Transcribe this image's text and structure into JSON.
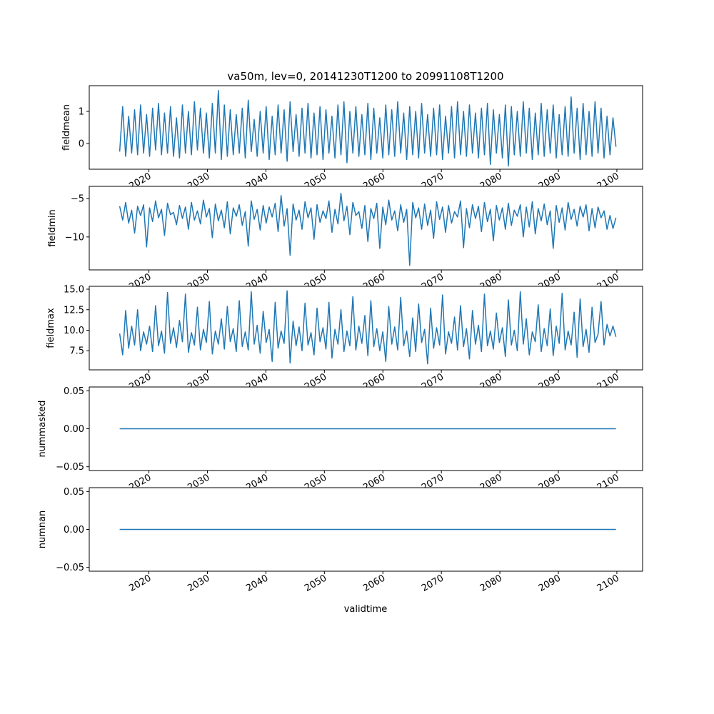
{
  "chart_data": {
    "type": "line",
    "title": "va50m, lev=0, 20141230T1200 to 20991108T1200",
    "xlabel": "validtime",
    "x_ticks": [
      "2020",
      "2030",
      "2040",
      "2050",
      "2060",
      "2070",
      "2080",
      "2090",
      "2100"
    ],
    "x_tick_values": [
      2020,
      2030,
      2040,
      2050,
      2060,
      2070,
      2080,
      2090,
      2100
    ],
    "xlim": [
      2009.8,
      2104.4
    ],
    "x_start": 2015.0,
    "x_end": 2099.85,
    "line_color": "#1f77b4",
    "panels": [
      {
        "ylabel": "fieldmean",
        "ylim": [
          -0.8,
          1.8
        ],
        "y_ticks": [
          "0",
          "1"
        ],
        "y_tick_values": [
          0,
          1
        ],
        "values": [
          -0.25,
          1.15,
          -0.4,
          0.85,
          -0.3,
          1.05,
          -0.35,
          1.2,
          -0.3,
          0.9,
          -0.4,
          1.1,
          -0.2,
          1.25,
          -0.35,
          0.95,
          -0.3,
          1.15,
          -0.4,
          0.8,
          -0.45,
          1.2,
          -0.3,
          1.0,
          -0.35,
          1.3,
          -0.2,
          1.1,
          -0.3,
          0.95,
          -0.45,
          1.25,
          -0.3,
          1.65,
          -0.5,
          1.2,
          -0.4,
          1.05,
          -0.35,
          0.9,
          -0.3,
          1.1,
          -0.45,
          1.35,
          -0.25,
          0.75,
          -0.4,
          1.0,
          -0.3,
          1.15,
          -0.5,
          0.85,
          -0.35,
          1.2,
          -0.3,
          1.05,
          -0.55,
          1.3,
          -0.25,
          0.9,
          -0.4,
          1.1,
          -0.3,
          1.25,
          -0.45,
          0.95,
          -0.35,
          1.15,
          -0.5,
          1.05,
          -0.3,
          0.85,
          -0.45,
          1.2,
          -0.35,
          1.3,
          -0.6,
          1.0,
          -0.3,
          1.15,
          -0.4,
          0.9,
          -0.35,
          1.25,
          -0.5,
          1.1,
          -0.3,
          0.8,
          -0.45,
          1.2,
          -0.35,
          1.05,
          -0.4,
          1.3,
          -0.3,
          0.95,
          -0.5,
          1.15,
          -0.35,
          1.0,
          -0.45,
          1.25,
          -0.3,
          0.9,
          -0.4,
          1.1,
          -0.35,
          1.2,
          -0.5,
          0.85,
          -0.3,
          1.15,
          -0.45,
          1.3,
          -0.35,
          1.0,
          -0.4,
          1.2,
          -0.3,
          0.95,
          -0.45,
          1.1,
          -0.35,
          1.25,
          -0.65,
          1.05,
          -0.3,
          0.9,
          -0.45,
          1.2,
          -0.7,
          1.15,
          -0.35,
          1.0,
          -0.4,
          1.3,
          -0.3,
          1.1,
          -0.5,
          0.95,
          -0.35,
          1.25,
          -0.4,
          1.05,
          -0.3,
          1.2,
          -0.45,
          0.9,
          -0.35,
          1.15,
          -0.4,
          1.45,
          -0.3,
          1.1,
          -0.5,
          1.25,
          -0.35,
          1.0,
          -0.4,
          1.3,
          -0.3,
          1.1,
          -0.45,
          0.85,
          -0.35,
          0.8,
          -0.1
        ]
      },
      {
        "ylabel": "fieldmin",
        "ylim": [
          -14.3,
          -3.4
        ],
        "y_ticks": [
          "−10",
          "−5"
        ],
        "y_tick_values": [
          -10,
          -5
        ],
        "values": [
          -6,
          -7.8,
          -5.5,
          -8.2,
          -6.5,
          -9.5,
          -6,
          -7.2,
          -5.8,
          -11.3,
          -6.2,
          -8,
          -5.3,
          -7.5,
          -6.4,
          -9.8,
          -5.6,
          -7.1,
          -6.8,
          -8.4,
          -5.9,
          -7.6,
          -6.1,
          -9,
          -5.5,
          -7.8,
          -6.6,
          -8.3,
          -5.2,
          -7.4,
          -6.3,
          -10.1,
          -5.7,
          -7.9,
          -6.5,
          -8.8,
          -5.4,
          -9.6,
          -6.2,
          -7.3,
          -5.8,
          -8.5,
          -6.7,
          -11.2,
          -5.3,
          -7.7,
          -6.4,
          -9.1,
          -5.9,
          -8.2,
          -6.1,
          -7.4,
          -5.6,
          -9.3,
          -4.6,
          -8.6,
          -6.3,
          -12.4,
          -5.7,
          -7.8,
          -6.5,
          -9,
          -5.4,
          -7.5,
          -6.2,
          -10.3,
          -5.8,
          -8.1,
          -6.6,
          -7.6,
          -5.3,
          -9.4,
          -6.4,
          -8.3,
          -4.3,
          -7.9,
          -6,
          -9.7,
          -5.5,
          -7.2,
          -6.7,
          -8.9,
          -5.9,
          -10.6,
          -6.3,
          -7.6,
          -5.6,
          -11.5,
          -6.1,
          -8.4,
          -5.2,
          -7.8,
          -6.6,
          -9.2,
          -5.8,
          -8.1,
          -6.4,
          -13.7,
          -5.5,
          -7.5,
          -6.2,
          -9,
          -5.7,
          -8.5,
          -6.5,
          -10.2,
          -5.4,
          -7.7,
          -6.1,
          -9.4,
          -5.9,
          -8.2,
          -6.7,
          -7.4,
          -5.3,
          -11.4,
          -6.3,
          -8.8,
          -5.8,
          -7.6,
          -6,
          -9.3,
          -5.5,
          -8,
          -6.4,
          -10.5,
          -5.9,
          -7.8,
          -6.2,
          -9,
          -5.6,
          -8.5,
          -6.5,
          -7.3,
          -5.8,
          -10,
          -6.1,
          -8.7,
          -5.4,
          -9.6,
          -6.3,
          -7.9,
          -5.7,
          -8.4,
          -6.6,
          -11.5,
          -5.9,
          -8.1,
          -6.2,
          -9.1,
          -5.5,
          -7.7,
          -6.4,
          -8.6,
          -6,
          -7.4,
          -5.8,
          -9.2,
          -6.3,
          -8.8,
          -6.1,
          -7.5,
          -6.6,
          -9.0,
          -7.2,
          -8.9,
          -7.5
        ]
      },
      {
        "ylabel": "fieldmax",
        "ylim": [
          5.17,
          15.35
        ],
        "y_ticks": [
          "7.5",
          "10.0",
          "12.5",
          "15.0"
        ],
        "y_tick_values": [
          7.5,
          10,
          12.5,
          15
        ],
        "values": [
          9.6,
          7,
          12.4,
          7.8,
          10.5,
          8.2,
          12.5,
          7.5,
          9.8,
          8.3,
          10.5,
          7.4,
          13,
          8.1,
          9.9,
          7.2,
          14.6,
          8.4,
          10.3,
          7.9,
          11.2,
          8.6,
          14.4,
          7.3,
          9.7,
          8.2,
          12.8,
          7.6,
          10.1,
          8.5,
          13.5,
          7.1,
          9.9,
          8.3,
          11.4,
          7.7,
          12.9,
          8.6,
          10.2,
          7.4,
          13.6,
          8,
          9.8,
          7.6,
          14.7,
          8.3,
          10.6,
          7.2,
          12.3,
          8.5,
          10.1,
          6.2,
          13.4,
          7.8,
          9.9,
          8.4,
          14.8,
          6,
          11.1,
          8.1,
          10.4,
          7.5,
          13.3,
          8.2,
          9.7,
          7,
          12.7,
          8.6,
          10.3,
          7.7,
          13.4,
          6.6,
          10.1,
          8.3,
          12.5,
          7.4,
          9.9,
          8.1,
          14.1,
          7.6,
          10.5,
          8.4,
          11.8,
          6.9,
          13.6,
          8,
          10.2,
          7.5,
          9.8,
          6.2,
          12.9,
          8.3,
          10.4,
          7.6,
          14,
          8.1,
          9.9,
          6.8,
          11.5,
          7.4,
          13.2,
          8.5,
          10.1,
          5.9,
          12.7,
          7.8,
          10.3,
          8.2,
          14.3,
          7.1,
          9.8,
          8.4,
          11.6,
          7.6,
          13,
          8,
          10.2,
          6.5,
          12.4,
          8.3,
          10.6,
          7.4,
          14.4,
          8.1,
          9.9,
          7.7,
          12.1,
          8.5,
          10.3,
          6.8,
          13.7,
          8.2,
          10,
          7.5,
          14.7,
          8.3,
          11.4,
          7,
          9.8,
          8.6,
          13.1,
          7.4,
          10.2,
          8.1,
          12.6,
          6.9,
          10.5,
          8.4,
          14.5,
          7.6,
          9.9,
          8.2,
          12.2,
          6.7,
          13.8,
          8,
          10.1,
          7.3,
          12.8,
          8.5,
          9.5,
          13.5,
          8.2,
          10.7,
          9.3,
          10.5,
          9.2
        ]
      },
      {
        "ylabel": "nummasked",
        "ylim": [
          -0.055,
          0.055
        ],
        "y_ticks": [
          "−0.05",
          "0.00",
          "0.05"
        ],
        "y_tick_values": [
          -0.05,
          0,
          0.05
        ],
        "values": [
          0,
          0
        ]
      },
      {
        "ylabel": "numnan",
        "ylim": [
          -0.055,
          0.055
        ],
        "y_ticks": [
          "−0.05",
          "0.00",
          "0.05"
        ],
        "y_tick_values": [
          -0.05,
          0,
          0.05
        ],
        "values": [
          0,
          0
        ]
      }
    ]
  }
}
